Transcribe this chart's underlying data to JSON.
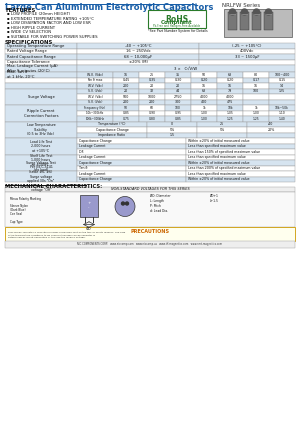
{
  "title_left": "Large Can Aluminum Electrolytic Capacitors",
  "title_right": "NRLFW Series",
  "features_title": "FEATURES",
  "features": [
    "LOW PROFILE (20mm HEIGHT)",
    "EXTENDED TEMPERATURE RATING +105°C",
    "LOW DISSIPATION FACTOR AND LOW ESR",
    "HIGH RIPPLE CURRENT",
    "WIDE CV SELECTION",
    "SUITABLE FOR SWITCHING POWER SUPPLIES"
  ],
  "rohs_note": "*See Part Number System for Details",
  "specs_title": "SPECIFICATIONS",
  "bg": "#ffffff",
  "blue": "#1a5fa8",
  "light_blue": "#d6e4f0",
  "mid_blue": "#b8d0e8",
  "dark_text": "#111111",
  "gray": "#888888",
  "table_border": "#999999"
}
